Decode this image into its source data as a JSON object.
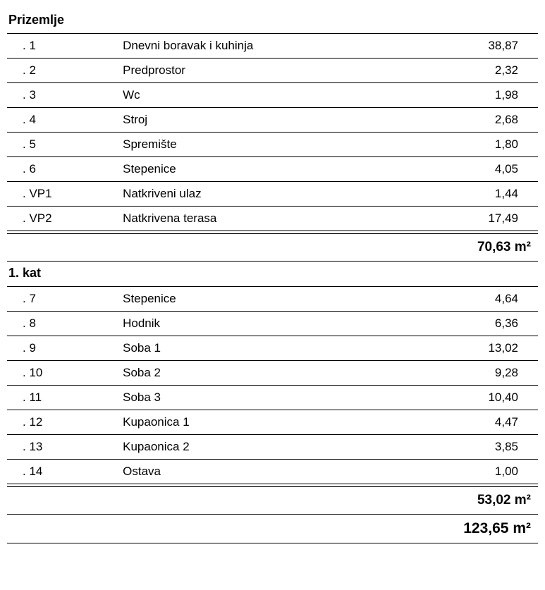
{
  "unit": "m²",
  "sections": [
    {
      "title": "Prizemlje",
      "rows": [
        {
          "ref": ".  1",
          "name": "Dnevni boravak i kuhinja",
          "area": "38,87"
        },
        {
          "ref": ".  2",
          "name": "Predprostor",
          "area": "2,32"
        },
        {
          "ref": ".  3",
          "name": "Wc",
          "area": "1,98"
        },
        {
          "ref": ".  4",
          "name": "Stroj",
          "area": "2,68"
        },
        {
          "ref": ".  5",
          "name": "Spremište",
          "area": "1,80"
        },
        {
          "ref": ".  6",
          "name": "Stepenice",
          "area": "4,05"
        },
        {
          "ref": ".  VP1",
          "name": "Natkriveni ulaz",
          "area": "1,44"
        },
        {
          "ref": ".  VP2",
          "name": "Natkrivena terasa",
          "area": "17,49"
        }
      ],
      "subtotal": "70,63"
    },
    {
      "title": "1. kat",
      "rows": [
        {
          "ref": ".  7",
          "name": "Stepenice",
          "area": "4,64"
        },
        {
          "ref": ".  8",
          "name": "Hodnik",
          "area": "6,36"
        },
        {
          "ref": ".  9",
          "name": "Soba 1",
          "area": "13,02"
        },
        {
          "ref": ".  10",
          "name": "Soba 2",
          "area": "9,28"
        },
        {
          "ref": ".  11",
          "name": "Soba 3",
          "area": "10,40"
        },
        {
          "ref": ".  12",
          "name": "Kupaonica 1",
          "area": "4,47"
        },
        {
          "ref": ".  13",
          "name": "Kupaonica 2",
          "area": "3,85"
        },
        {
          "ref": ".  14",
          "name": "Ostava",
          "area": "1,00"
        }
      ],
      "subtotal": "53,02"
    }
  ],
  "grand_total": "123,65"
}
